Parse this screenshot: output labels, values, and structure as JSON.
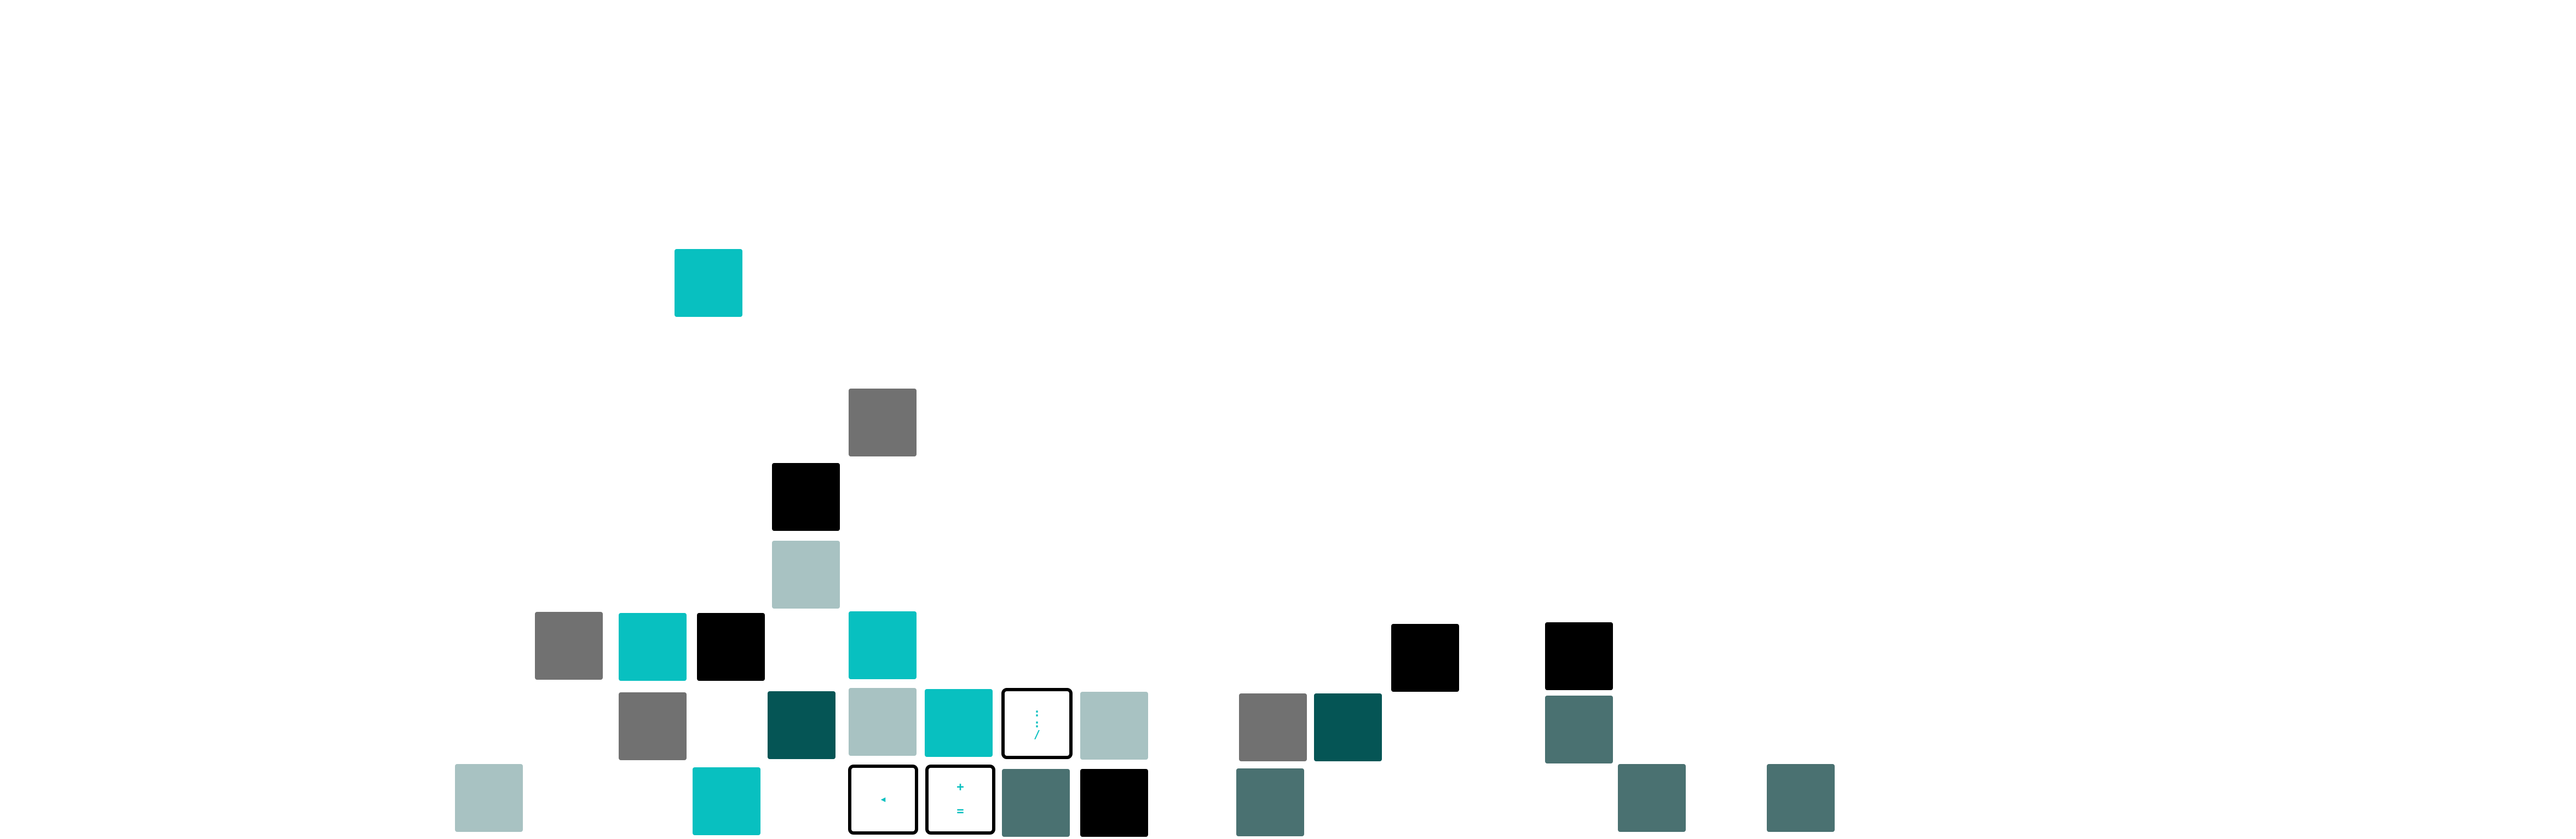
{
  "palette": {
    "teal": "#08c0c0",
    "gray": "#717171",
    "black": "#000000",
    "light_sage": "#a8c2c2",
    "dark_teal": "#055555",
    "slate_teal": "#4a7171",
    "outline": "#000000",
    "glyph": "#08c0c0"
  },
  "tiles": [
    {
      "id": "t1",
      "color": "teal"
    },
    {
      "id": "t2",
      "color": "gray"
    },
    {
      "id": "t3",
      "color": "black"
    },
    {
      "id": "t4",
      "color": "light_sage"
    },
    {
      "id": "t5",
      "color": "gray"
    },
    {
      "id": "t6",
      "color": "teal"
    },
    {
      "id": "t7",
      "color": "black"
    },
    {
      "id": "t8",
      "color": "teal"
    },
    {
      "id": "t9",
      "color": "gray"
    },
    {
      "id": "t10",
      "color": "dark_teal"
    },
    {
      "id": "t11",
      "color": "light_sage"
    },
    {
      "id": "t12",
      "color": "teal"
    },
    {
      "id": "t13",
      "color": "light_sage"
    },
    {
      "id": "t14",
      "color": "gray"
    },
    {
      "id": "t15",
      "color": "dark_teal"
    },
    {
      "id": "t16",
      "color": "black"
    },
    {
      "id": "t17",
      "color": "black"
    },
    {
      "id": "t18",
      "color": "slate_teal"
    },
    {
      "id": "t19",
      "color": "light_sage"
    },
    {
      "id": "t20",
      "color": "teal"
    },
    {
      "id": "t21",
      "color": "slate_teal"
    },
    {
      "id": "t22",
      "color": "black"
    },
    {
      "id": "t23",
      "color": "slate_teal"
    },
    {
      "id": "t24",
      "color": "slate_teal"
    },
    {
      "id": "t25",
      "color": "slate_teal"
    }
  ],
  "special_tiles": [
    {
      "id": "s1",
      "glyph": ":\n:\n/"
    },
    {
      "id": "s2",
      "glyph": "◂"
    },
    {
      "id": "s3",
      "glyph": "+\n\n="
    }
  ]
}
